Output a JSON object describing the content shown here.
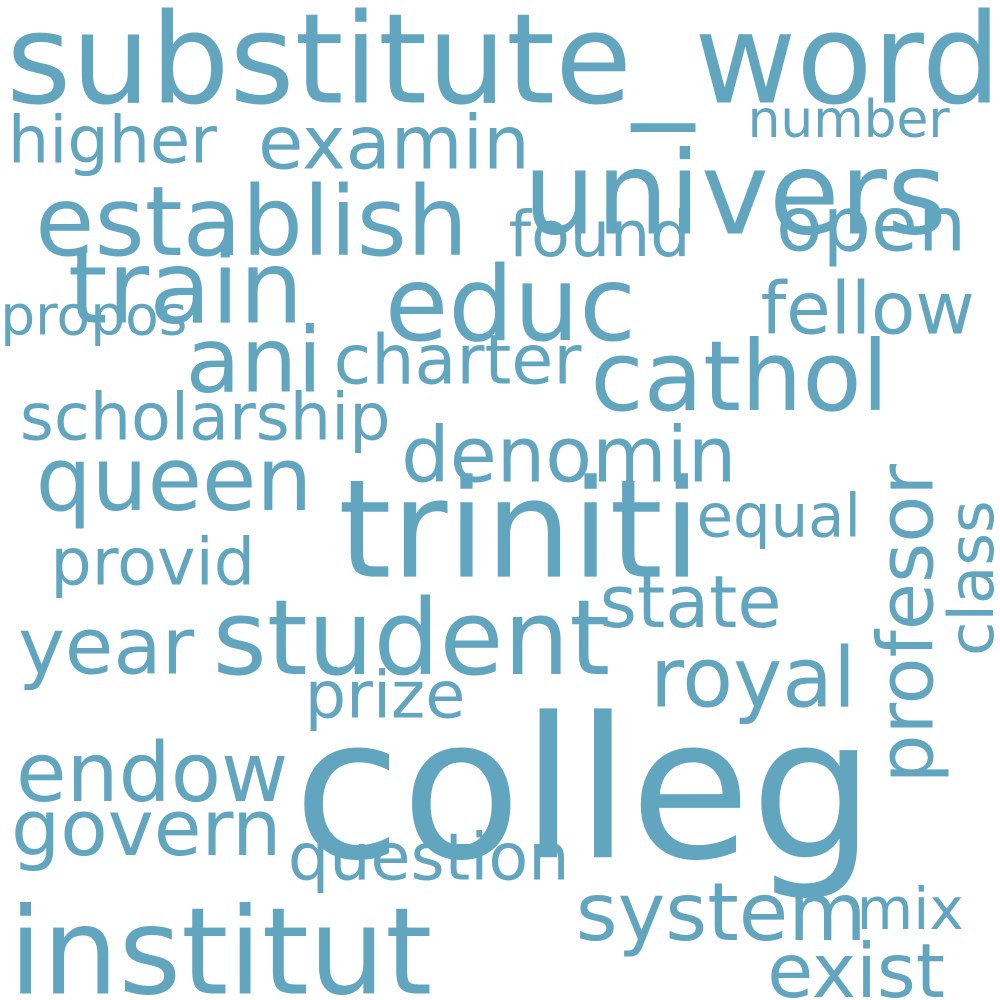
{
  "cloud": {
    "color": "#62a5bf",
    "background": "#ffffff",
    "words": [
      {
        "key": "substitute_word",
        "text": "substitute_word"
      },
      {
        "key": "colleg",
        "text": "colleg"
      },
      {
        "key": "univers",
        "text": "univers"
      },
      {
        "key": "educ",
        "text": "educ"
      },
      {
        "key": "triniti",
        "text": "triniti"
      },
      {
        "key": "student",
        "text": "student"
      },
      {
        "key": "institut",
        "text": "institut"
      },
      {
        "key": "establish",
        "text": "establish"
      },
      {
        "key": "queen",
        "text": "queen"
      },
      {
        "key": "profesor",
        "text": "profesor"
      },
      {
        "key": "cathol",
        "text": "cathol"
      },
      {
        "key": "endow",
        "text": "endow"
      },
      {
        "key": "examin",
        "text": "examin"
      },
      {
        "key": "denomin",
        "text": "denomin"
      },
      {
        "key": "system",
        "text": "system"
      },
      {
        "key": "train",
        "text": "train"
      },
      {
        "key": "royal",
        "text": "royal"
      },
      {
        "key": "open",
        "text": "open"
      },
      {
        "key": "year",
        "text": "year"
      },
      {
        "key": "govern",
        "text": "govern"
      },
      {
        "key": "ani",
        "text": "ani"
      },
      {
        "key": "higher",
        "text": "higher"
      },
      {
        "key": "fellow",
        "text": "fellow"
      },
      {
        "key": "found",
        "text": "found"
      },
      {
        "key": "charter",
        "text": "charter"
      },
      {
        "key": "scholarship",
        "text": "scholarship"
      },
      {
        "key": "provid",
        "text": "provid"
      },
      {
        "key": "equal",
        "text": "equal"
      },
      {
        "key": "state",
        "text": "state"
      },
      {
        "key": "prize",
        "text": "prize"
      },
      {
        "key": "question",
        "text": "question"
      },
      {
        "key": "number",
        "text": "number"
      },
      {
        "key": "propos",
        "text": "propos"
      },
      {
        "key": "mix",
        "text": "mix"
      },
      {
        "key": "exist",
        "text": "exist"
      },
      {
        "key": "class",
        "text": "class"
      }
    ]
  }
}
